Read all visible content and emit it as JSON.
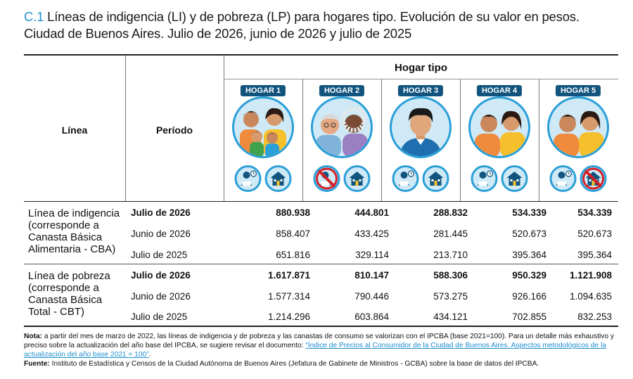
{
  "title": {
    "number": "C.1",
    "text": "Líneas de indigencia (LI) y de pobreza (LP) para hogares tipo. Evolución de su valor en pesos. Ciudad de Buenos Aires. Julio de 2026, junio de 2026 y julio de 2025"
  },
  "headers": {
    "linea": "Línea",
    "periodo": "Período",
    "hogar_tipo": "Hogar tipo",
    "hogares": [
      "HOGAR 1",
      "HOGAR 2",
      "HOGAR 3",
      "HOGAR 4",
      "HOGAR 5"
    ]
  },
  "hogar_icons": [
    {
      "portrait": "family-four-icon",
      "badges": [
        "worker-icon",
        "house-icon"
      ],
      "crossed": []
    },
    {
      "portrait": "elderly-couple-icon",
      "badges": [
        "worker-icon",
        "house-icon"
      ],
      "crossed": [
        0
      ]
    },
    {
      "portrait": "single-adult-icon",
      "badges": [
        "worker-icon",
        "house-icon"
      ],
      "crossed": []
    },
    {
      "portrait": "adult-couple-icon",
      "badges": [
        "worker-icon",
        "house-icon"
      ],
      "crossed": []
    },
    {
      "portrait": "adult-couple-icon",
      "badges": [
        "worker-icon",
        "house-icon"
      ],
      "crossed": [
        1
      ]
    }
  ],
  "groups": [
    {
      "label": "Línea de indigencia (corresponde a Canasta Básica Alimentaria - CBA)",
      "rows": [
        {
          "periodo": "Julio de 2026",
          "values": [
            "880.938",
            "444.801",
            "288.832",
            "534.339",
            "534.339"
          ]
        },
        {
          "periodo": "Junio de 2026",
          "values": [
            "858.407",
            "433.425",
            "281.445",
            "520.673",
            "520.673"
          ]
        },
        {
          "periodo": "Julio de 2025",
          "values": [
            "651.816",
            "329.114",
            "213.710",
            "395.364",
            "395.364"
          ]
        }
      ]
    },
    {
      "label": "Línea de pobreza (corresponde a Canasta Básica Total - CBT)",
      "rows": [
        {
          "periodo": "Julio de 2026",
          "values": [
            "1.617.871",
            "810.147",
            "588.306",
            "950.329",
            "1.121.908"
          ]
        },
        {
          "periodo": "Junio de 2026",
          "values": [
            "1.577.314",
            "790.446",
            "573.275",
            "926.166",
            "1.094.635"
          ]
        },
        {
          "periodo": "Julio de 2025",
          "values": [
            "1.214.296",
            "603.864",
            "434.121",
            "702.855",
            "832.253"
          ]
        }
      ]
    }
  ],
  "notes": {
    "nota_label": "Nota:",
    "nota_text": "a partir del mes de marzo de 2022, las líneas de indigencia y de pobreza y las canastas de consumo se valorizan con el IPCBA (base 2021=100). Para un detalle más exhaustivo y preciso sobre la actualización del año base del IPCBA, se sugiere revisar el documento:",
    "nota_link": "“Índice de Precios al Consumidor de la Ciudad de Buenos Aires. Aspectos metodológicos de la actualización del año base 2021 = 100”",
    "nota_end": ".",
    "fuente_label": "Fuente:",
    "fuente_text": "Instituto de Estadística y Censos de la Ciudad Autónoma de Buenos Aires (Jefatura de Gabinete de Ministros - GCBA) sobre la base de datos del IPCBA."
  },
  "colors": {
    "accent": "#1f8fcf",
    "tag_bg": "#12547e",
    "icon_bg": "#cfe9f6",
    "cross": "#d42027"
  }
}
